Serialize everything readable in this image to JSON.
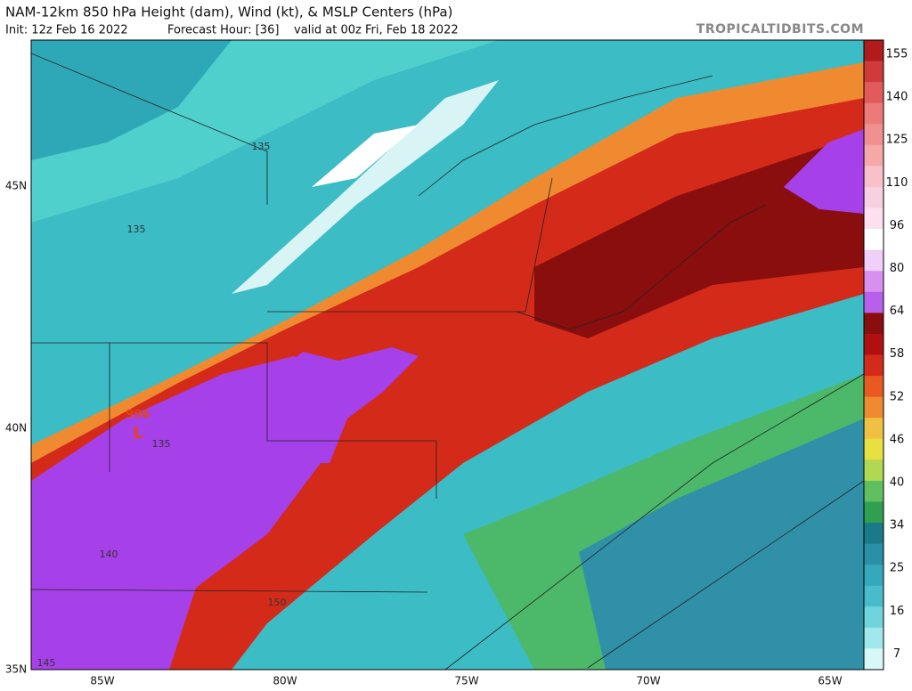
{
  "header": {
    "title": "NAM-12km 850 hPa Height (dam), Wind (kt), & MSLP Centers (hPa)",
    "init": "Init: 12z Feb 16 2022",
    "forecast_hour": "Forecast Hour: [36]",
    "valid": "valid at 00z Fri, Feb 18 2022",
    "site": "TROPICALTIDBITS.COM"
  },
  "map": {
    "lat_labels": [
      "45N",
      "40N",
      "35N"
    ],
    "lon_labels": [
      "85W",
      "80W",
      "75W",
      "70W",
      "65W"
    ],
    "contour_labels": [
      "135",
      "135",
      "135",
      "140",
      "150",
      "145"
    ],
    "pressure_center": {
      "value": "996",
      "symbol": "L"
    }
  },
  "colorbar": {
    "labels": [
      155,
      140,
      125,
      110,
      96,
      80,
      64,
      58,
      52,
      46,
      40,
      34,
      25,
      16,
      7
    ]
  }
}
